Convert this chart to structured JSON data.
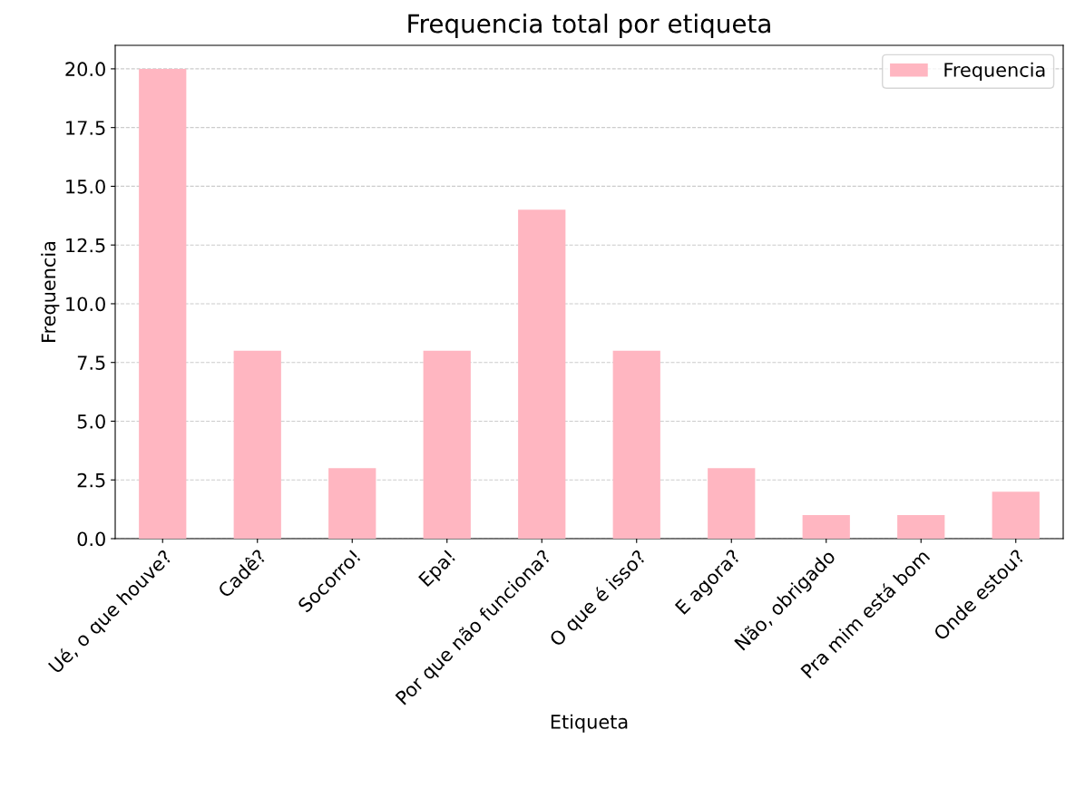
{
  "chart_data": {
    "type": "bar",
    "title": "Frequencia total por etiqueta",
    "xlabel": "Etiqueta",
    "ylabel": "Frequencia",
    "categories": [
      "Ué, o que houve?",
      "Cadê?",
      "Socorro!",
      "Epa!",
      "Por que não funciona?",
      "O que é isso?",
      "E agora?",
      "Não, obrigado",
      "Pra mim está bom",
      "Onde estou?"
    ],
    "series": [
      {
        "name": "Frequencia",
        "color": "#ffb6c1",
        "values": [
          20,
          8,
          3,
          8,
          14,
          8,
          3,
          1,
          1,
          2
        ]
      }
    ],
    "ylim": [
      0,
      21
    ],
    "yticks": [
      {
        "value": 0,
        "label": "0.0"
      },
      {
        "value": 2.5,
        "label": "2.5"
      },
      {
        "value": 5,
        "label": "5.0"
      },
      {
        "value": 7.5,
        "label": "7.5"
      },
      {
        "value": 10,
        "label": "10.0"
      },
      {
        "value": 12.5,
        "label": "12.5"
      },
      {
        "value": 15,
        "label": "15.0"
      },
      {
        "value": 17.5,
        "label": "17.5"
      },
      {
        "value": 20,
        "label": "20.0"
      }
    ],
    "grid": "y",
    "legend": "top right"
  }
}
